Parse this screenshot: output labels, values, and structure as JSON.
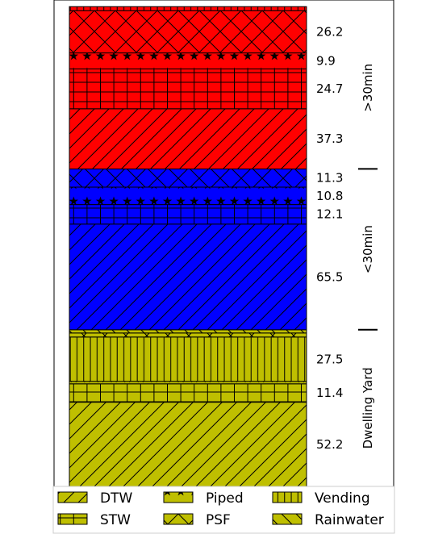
{
  "chart_data": {
    "type": "bar",
    "orientation": "stacked-vertical",
    "title": "",
    "xlabel": "",
    "ylabel": "",
    "groups": [
      {
        "name": "Dwelling Yard",
        "color": "#bfbf00",
        "segments": [
          {
            "category": "DTW",
            "value": 52.2,
            "label": "52.2"
          },
          {
            "category": "STW",
            "value": 11.4,
            "label": "11.4"
          },
          {
            "category": "Piped",
            "value": 1.5,
            "label": ""
          },
          {
            "category": "Vending",
            "value": 27.5,
            "label": "27.5"
          },
          {
            "category": "PSF",
            "value": 2.5,
            "label": ""
          },
          {
            "category": "Rainwater",
            "value": 2.0,
            "label": ""
          }
        ]
      },
      {
        "name": "<30min",
        "color": "#0000ff",
        "segments": [
          {
            "category": "DTW",
            "value": 65.5,
            "label": "65.5"
          },
          {
            "category": "STW",
            "value": 12.1,
            "label": "12.1"
          },
          {
            "category": "Piped",
            "value": 10.8,
            "label": "10.8"
          },
          {
            "category": "PSF",
            "value": 11.3,
            "label": "11.3"
          }
        ]
      },
      {
        "name": ">30min",
        "color": "#ff0000",
        "segments": [
          {
            "category": "DTW",
            "value": 37.3,
            "label": "37.3"
          },
          {
            "category": "STW",
            "value": 24.7,
            "label": "24.7"
          },
          {
            "category": "Piped",
            "value": 9.9,
            "label": "9.9"
          },
          {
            "category": "PSF",
            "value": 26.2,
            "label": "26.2"
          },
          {
            "category": "Vending",
            "value": 2.5,
            "label": ""
          }
        ]
      }
    ],
    "legend": {
      "position": "bottom",
      "entries": [
        {
          "label": "DTW",
          "hatch": "diag"
        },
        {
          "label": "Piped",
          "hatch": "star"
        },
        {
          "label": "Vending",
          "hatch": "vert"
        },
        {
          "label": "STW",
          "hatch": "grid"
        },
        {
          "label": "PSF",
          "hatch": "cross"
        },
        {
          "label": "Rainwater",
          "hatch": "back"
        }
      ]
    }
  }
}
